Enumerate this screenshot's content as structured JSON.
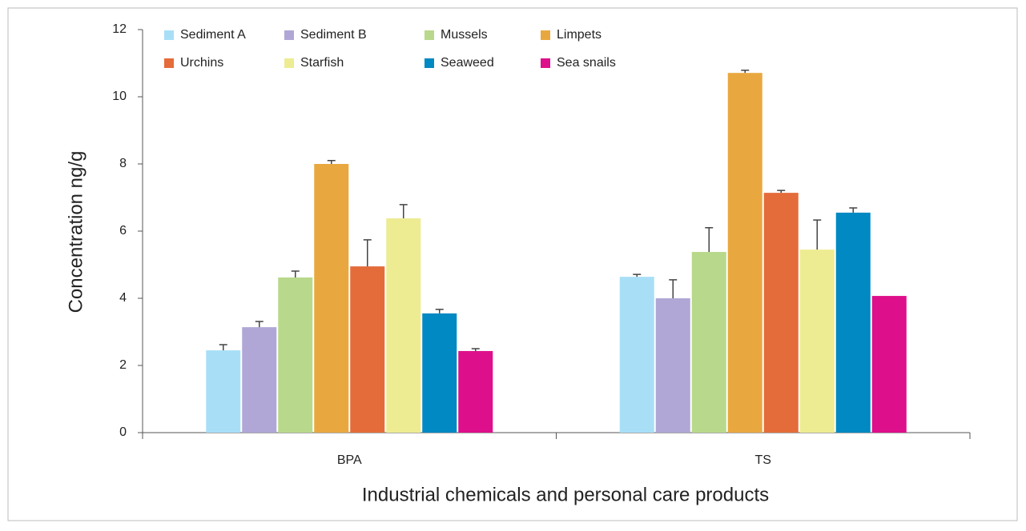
{
  "chart_data": {
    "type": "bar",
    "xlabel": "Industrial chemicals and personal care products",
    "ylabel": "Concentration ng/g",
    "categories": [
      "BPA",
      "TS"
    ],
    "ylim": [
      0,
      12
    ],
    "yticks": [
      0,
      2,
      4,
      6,
      8,
      10,
      12
    ],
    "series": [
      {
        "name": "Sediment A",
        "color": "#a8dff7",
        "values": [
          2.45,
          4.64
        ],
        "errors": [
          0.17,
          0.07
        ]
      },
      {
        "name": "Sediment B",
        "color": "#b0a7d6",
        "values": [
          3.14,
          4.0
        ],
        "errors": [
          0.17,
          0.55
        ]
      },
      {
        "name": "Mussels",
        "color": "#b8d98b",
        "values": [
          4.62,
          5.38
        ],
        "errors": [
          0.19,
          0.72
        ]
      },
      {
        "name": "Limpets",
        "color": "#e9a83f",
        "values": [
          8.0,
          10.71
        ],
        "errors": [
          0.1,
          0.08
        ]
      },
      {
        "name": "Urchins",
        "color": "#e46c3a",
        "values": [
          4.95,
          7.14
        ],
        "errors": [
          0.79,
          0.07
        ]
      },
      {
        "name": "Starfish",
        "color": "#eeec92",
        "values": [
          6.38,
          5.45
        ],
        "errors": [
          0.41,
          0.88
        ]
      },
      {
        "name": "Seaweed",
        "color": "#0089c2",
        "values": [
          3.55,
          6.55
        ],
        "errors": [
          0.12,
          0.14
        ]
      },
      {
        "name": "Sea snails",
        "color": "#de0f8a",
        "values": [
          2.43,
          4.07
        ],
        "errors": [
          0.07,
          null
        ]
      }
    ]
  }
}
